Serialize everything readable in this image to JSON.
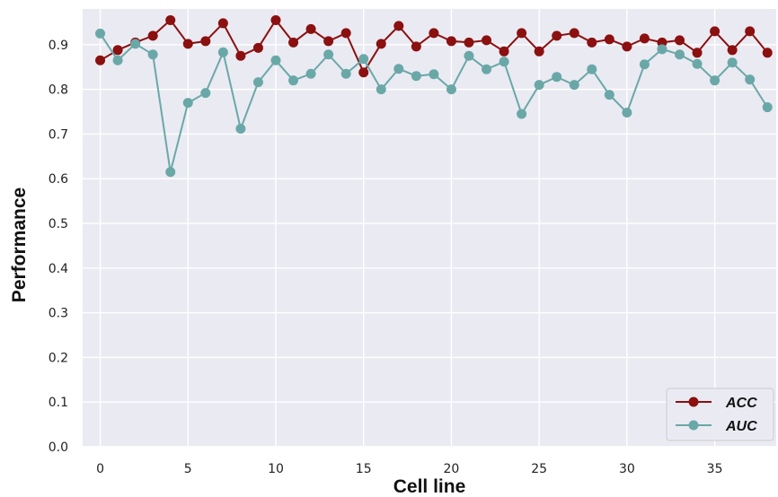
{
  "chart_data": {
    "type": "line",
    "xlabel": "Cell line",
    "ylabel": "Performance",
    "xlim": [
      -1,
      38.5
    ],
    "ylim": [
      0,
      0.98
    ],
    "xticks": [
      0,
      5,
      10,
      15,
      20,
      25,
      30,
      35
    ],
    "yticks": [
      0.0,
      0.1,
      0.2,
      0.3,
      0.4,
      0.5,
      0.6,
      0.7,
      0.8,
      0.9
    ],
    "ytick_labels": [
      "0.0",
      "0.1",
      "0.2",
      "0.3",
      "0.4",
      "0.5",
      "0.6",
      "0.7",
      "0.8",
      "0.9"
    ],
    "grid": true,
    "legend_position": "bottom-right",
    "x": [
      0,
      1,
      2,
      3,
      4,
      5,
      6,
      7,
      8,
      9,
      10,
      11,
      12,
      13,
      14,
      15,
      16,
      17,
      18,
      19,
      20,
      21,
      22,
      23,
      24,
      25,
      26,
      27,
      28,
      29,
      30,
      31,
      32,
      33,
      34,
      35,
      36,
      37,
      38
    ],
    "series": [
      {
        "name": "ACC",
        "color": "#8B1010",
        "values": [
          0.865,
          0.888,
          0.905,
          0.92,
          0.955,
          0.902,
          0.908,
          0.948,
          0.875,
          0.893,
          0.955,
          0.905,
          0.935,
          0.908,
          0.926,
          0.838,
          0.902,
          0.942,
          0.896,
          0.926,
          0.908,
          0.905,
          0.91,
          0.885,
          0.926,
          0.885,
          0.92,
          0.926,
          0.905,
          0.912,
          0.896,
          0.914,
          0.905,
          0.91,
          0.882,
          0.93,
          0.888,
          0.93,
          0.882
        ]
      },
      {
        "name": "AUC",
        "color": "#6AA8A8",
        "values": [
          0.925,
          0.865,
          0.902,
          0.878,
          0.615,
          0.77,
          0.792,
          0.883,
          0.712,
          0.816,
          0.865,
          0.82,
          0.835,
          0.878,
          0.835,
          0.868,
          0.8,
          0.846,
          0.83,
          0.834,
          0.8,
          0.875,
          0.845,
          0.862,
          0.745,
          0.81,
          0.828,
          0.81,
          0.845,
          0.788,
          0.748,
          0.856,
          0.89,
          0.878,
          0.857,
          0.82,
          0.86,
          0.822,
          0.76
        ]
      }
    ]
  }
}
